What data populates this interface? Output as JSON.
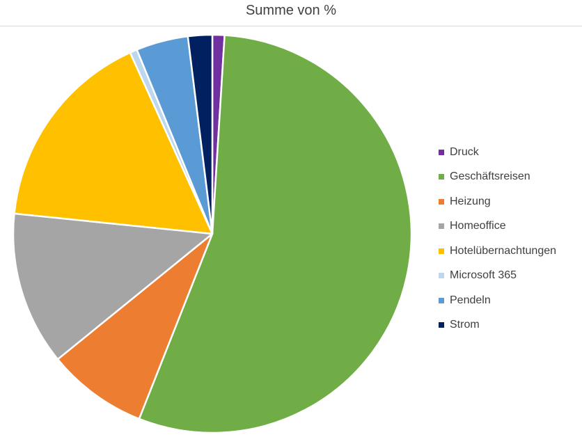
{
  "chart_data": {
    "type": "pie",
    "title": "Summe von %",
    "legend_position": "right",
    "start_angle_deg": 0,
    "slices": [
      {
        "label": "Druck",
        "value": 1.0,
        "color": "#7030a0"
      },
      {
        "label": "Geschäftsreisen",
        "value": 56.0,
        "color": "#70ad47"
      },
      {
        "label": "Heizung",
        "value": 8.3,
        "color": "#ed7d31"
      },
      {
        "label": "Homeoffice",
        "value": 12.7,
        "color": "#a5a5a5"
      },
      {
        "label": "Hotelübernachtungen",
        "value": 16.9,
        "color": "#ffc000"
      },
      {
        "label": "Microsoft 365",
        "value": 0.6,
        "color": "#bdd7ee"
      },
      {
        "label": "Pendeln",
        "value": 4.3,
        "color": "#5b9bd5"
      },
      {
        "label": "Strom",
        "value": 2.0,
        "color": "#002060"
      }
    ]
  }
}
